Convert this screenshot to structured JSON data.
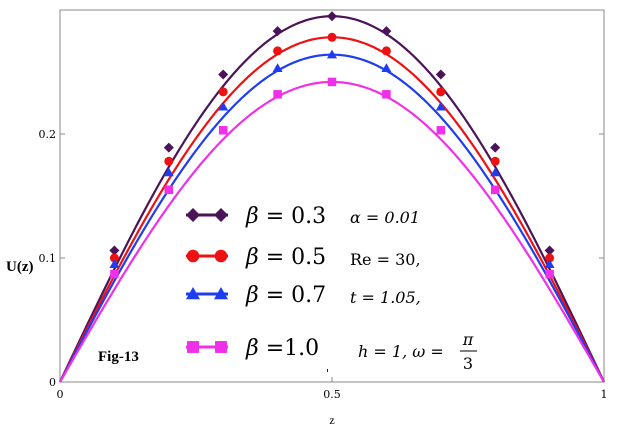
{
  "chart_data": {
    "type": "line",
    "ylabel": "U(z)",
    "xlabel": "z",
    "xlim": [
      0,
      1
    ],
    "ylim": [
      0,
      0.3
    ],
    "x_ticks": [
      "0",
      "0.5",
      "1"
    ],
    "y_ticks": [
      "0",
      "0.1",
      "0.2"
    ],
    "x_tick_values": [
      0,
      0.5,
      1
    ],
    "y_tick_values": [
      0,
      0.1,
      0.2
    ],
    "x": [
      0,
      0.1,
      0.2,
      0.3,
      0.4,
      0.5,
      0.6,
      0.7,
      0.8,
      0.9,
      1.0
    ],
    "series": [
      {
        "name": "β = 0.3",
        "beta_symbol": "β",
        "beta_value": "= 0.3",
        "color": "#4b1358",
        "marker": "diamond",
        "values": [
          0,
          0.106,
          0.189,
          0.248,
          0.283,
          0.295,
          0.283,
          0.248,
          0.189,
          0.106,
          0
        ]
      },
      {
        "name": "β = 0.5",
        "beta_symbol": "β",
        "beta_value": "= 0.5",
        "color": "#ee1111",
        "marker": "circle",
        "values": [
          0,
          0.1,
          0.178,
          0.234,
          0.267,
          0.278,
          0.267,
          0.234,
          0.178,
          0.1,
          0
        ]
      },
      {
        "name": "β = 0.7",
        "beta_symbol": "β",
        "beta_value": "= 0.7",
        "color": "#1f3df0",
        "marker": "triangle",
        "values": [
          0,
          0.095,
          0.169,
          0.222,
          0.253,
          0.264,
          0.253,
          0.222,
          0.169,
          0.095,
          0
        ]
      },
      {
        "name": "β =1.0",
        "beta_symbol": "β",
        "beta_value": "=1.0",
        "color": "#f030e8",
        "marker": "square",
        "values": [
          0,
          0.087,
          0.155,
          0.203,
          0.232,
          0.242,
          0.232,
          0.203,
          0.155,
          0.087,
          0
        ]
      }
    ],
    "legend_position": "lower-center",
    "params": {
      "alpha": "α = 0.01",
      "re": "Re = 30,",
      "t": "t = 1.05,",
      "h_omega": "h = 1, ω =",
      "pi": "π",
      "three": "3"
    },
    "figure_label": "Fig-13",
    "annotation_mark": "'",
    "grid": false
  }
}
